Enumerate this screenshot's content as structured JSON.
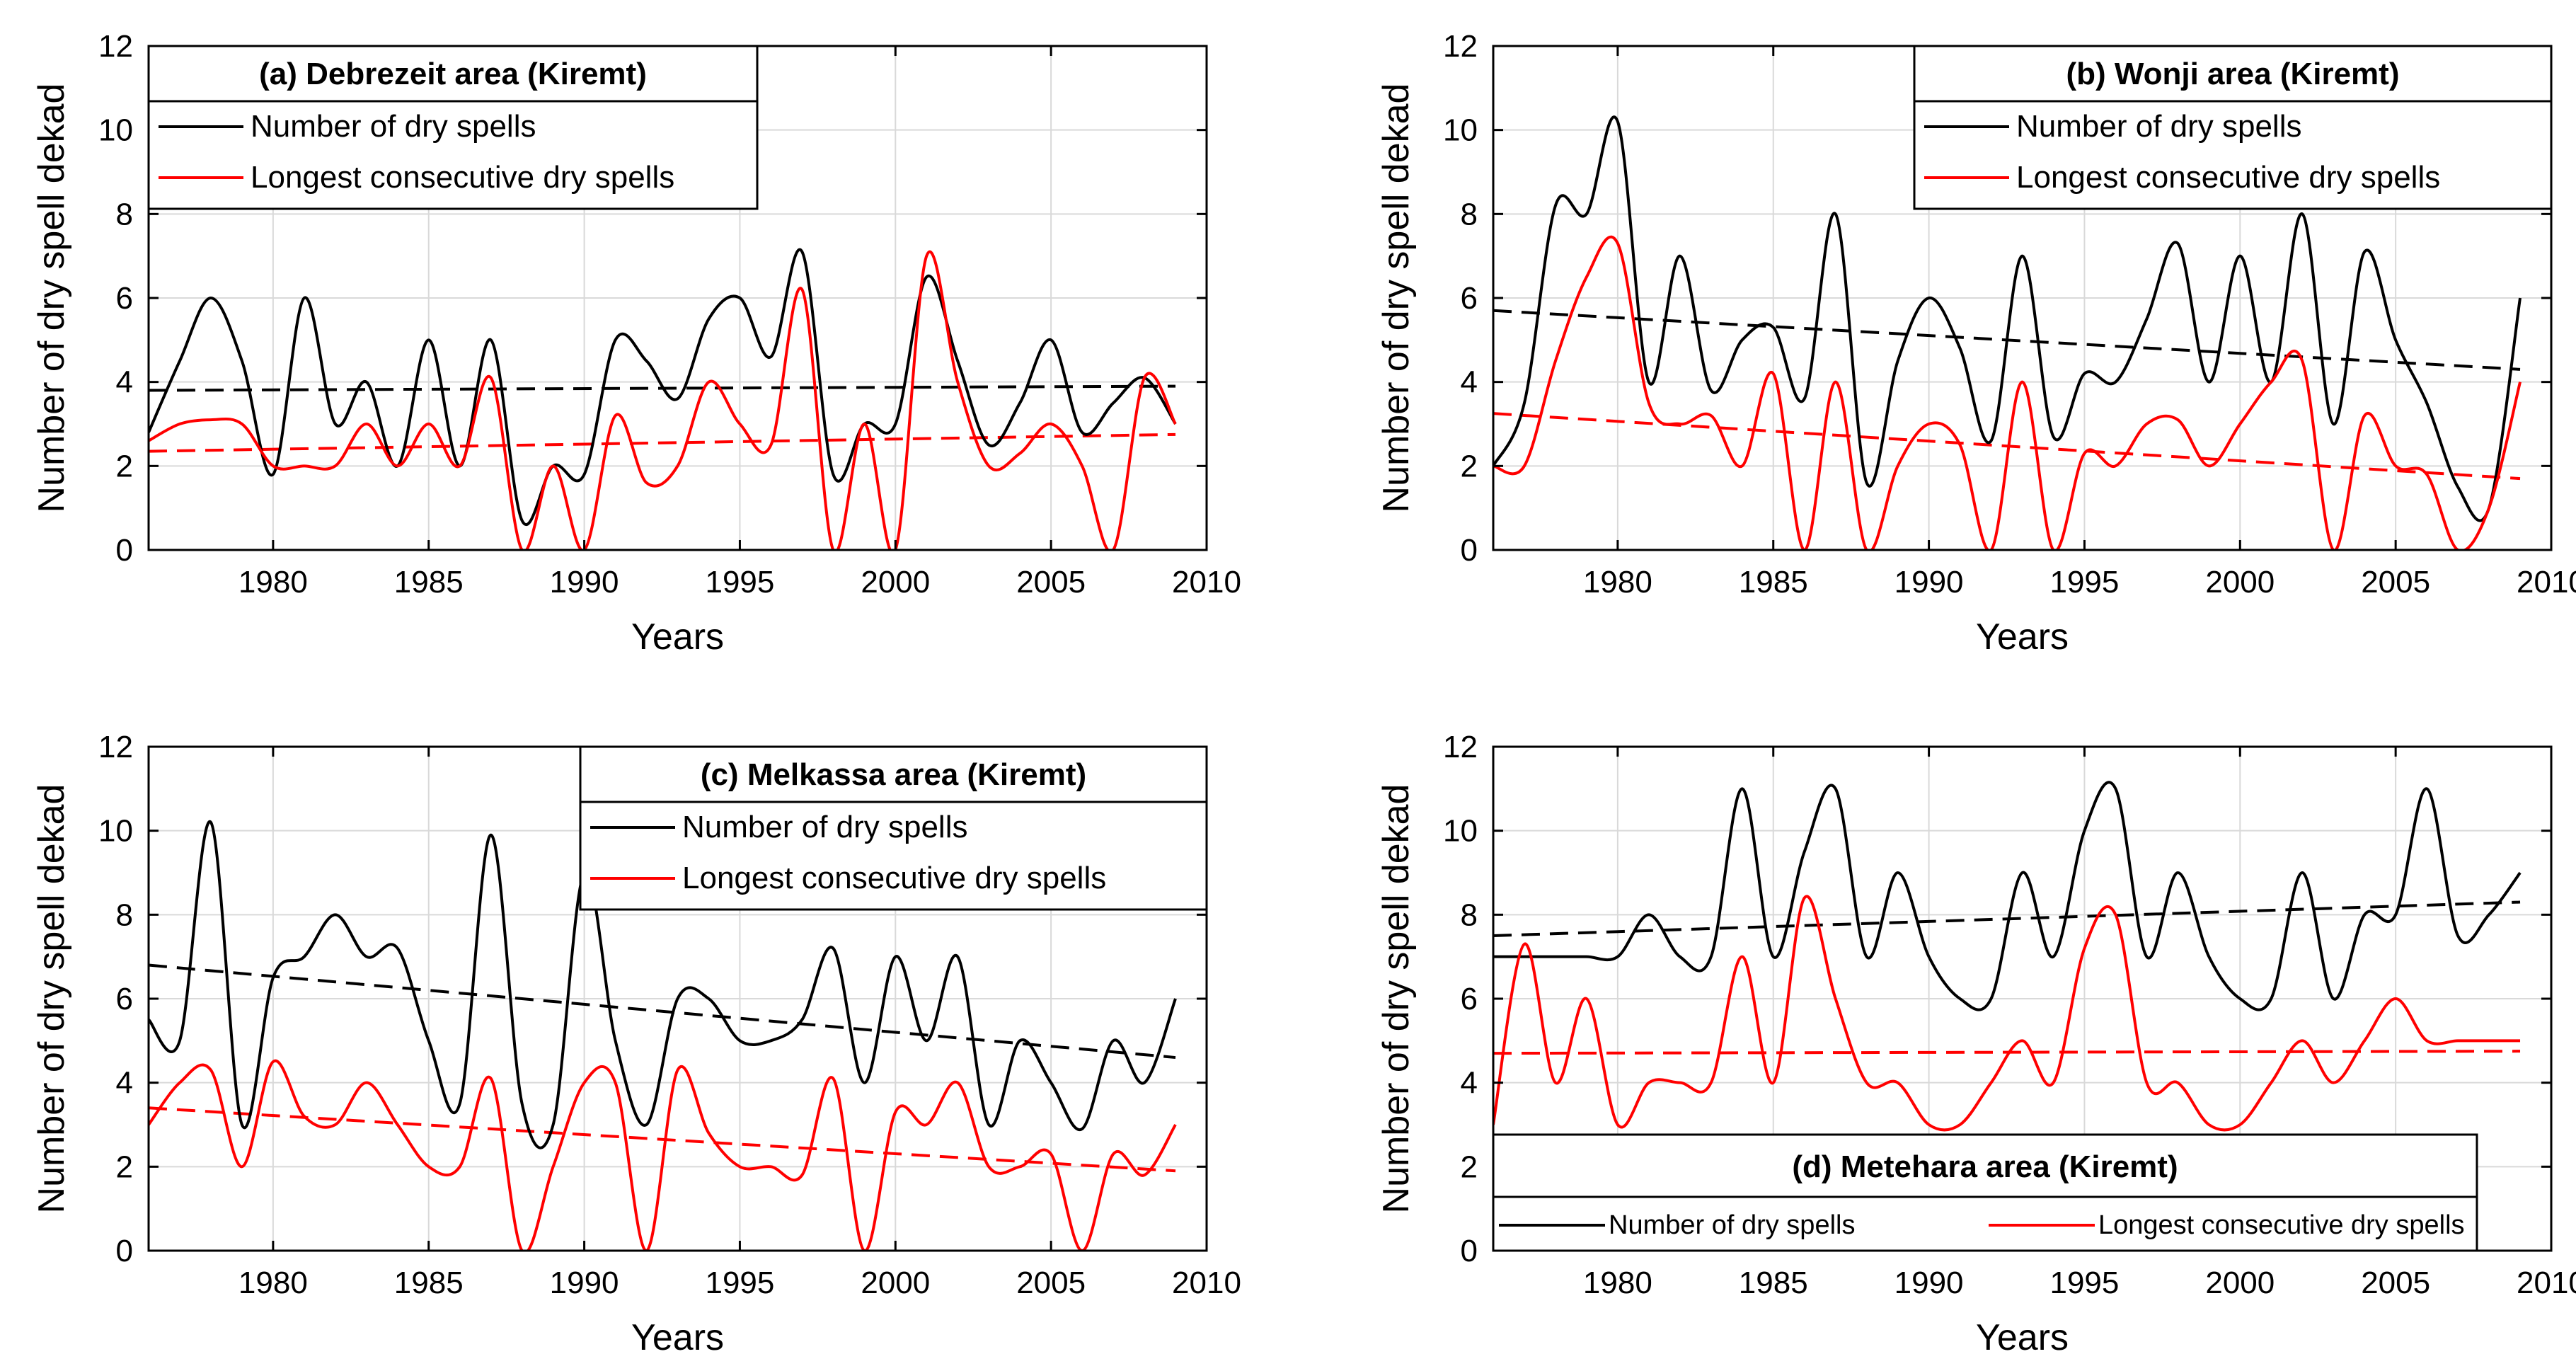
{
  "figure": {
    "shared_ylabel": "Number of dry spell dekad",
    "shared_xlabel": "Years"
  },
  "colors": {
    "series1": "#000000",
    "series2": "#ff0000",
    "grid": "#d9d9d9"
  },
  "chart_data": [
    {
      "type": "line",
      "panel": "a",
      "title": "(a) Debrezeit area (Kiremt)",
      "xlabel": "Years",
      "ylabel": "Number of dry spell dekad",
      "xlim": [
        1976,
        2010
      ],
      "ylim": [
        0,
        12
      ],
      "xticks": [
        1980,
        1985,
        1990,
        1995,
        2000,
        2005,
        2010
      ],
      "yticks": [
        0,
        2,
        4,
        6,
        8,
        10,
        12
      ],
      "grid": true,
      "legend_position": "top-left",
      "legend_layout": "vertical",
      "x": [
        1976,
        1977,
        1978,
        1979,
        1980,
        1981,
        1982,
        1983,
        1984,
        1985,
        1986,
        1987,
        1988,
        1989,
        1990,
        1991,
        1992,
        1993,
        1994,
        1995,
        1996,
        1997,
        1998,
        1999,
        2000,
        2001,
        2002,
        2003,
        2004,
        2005,
        2006,
        2007,
        2008,
        2009
      ],
      "series": [
        {
          "name": "Number of dry spells",
          "color": "#000000",
          "values": [
            2.8,
            4.5,
            6.0,
            4.5,
            1.8,
            6.0,
            3.0,
            4.0,
            2.0,
            5.0,
            2.0,
            5.0,
            0.7,
            2.0,
            1.8,
            5.0,
            4.5,
            3.6,
            5.5,
            6.0,
            4.6,
            7.1,
            1.8,
            3.0,
            3.0,
            6.5,
            4.5,
            2.5,
            3.5,
            5.0,
            2.8,
            3.5,
            4.1,
            3.0
          ]
        },
        {
          "name": "Longest consecutive dry spells",
          "color": "#ff0000",
          "values": [
            2.6,
            3.0,
            3.1,
            3.0,
            2.0,
            2.0,
            2.0,
            3.0,
            2.0,
            3.0,
            2.0,
            4.1,
            0.0,
            2.0,
            0.0,
            3.2,
            1.6,
            2.0,
            4.0,
            3.0,
            2.5,
            6.2,
            0.0,
            3.0,
            0.0,
            7.0,
            4.0,
            2.0,
            2.3,
            3.0,
            2.0,
            0.0,
            4.1,
            3.0
          ]
        }
      ],
      "trends": [
        {
          "name": "Number of dry spells trend",
          "color": "#000000",
          "x": [
            1976,
            2009
          ],
          "y": [
            3.8,
            3.9
          ]
        },
        {
          "name": "Longest consecutive dry spells trend",
          "color": "#ff0000",
          "x": [
            1976,
            2009
          ],
          "y": [
            2.35,
            2.75
          ]
        }
      ]
    },
    {
      "type": "line",
      "panel": "b",
      "title": "(b) Wonji area (Kiremt)",
      "xlabel": "Years",
      "ylabel": "Number of dry spell dekad",
      "xlim": [
        1976,
        2010
      ],
      "ylim": [
        0,
        12
      ],
      "xticks": [
        1980,
        1985,
        1990,
        1995,
        2000,
        2005,
        2010
      ],
      "yticks": [
        0,
        2,
        4,
        6,
        8,
        10,
        12
      ],
      "grid": true,
      "legend_position": "top-right",
      "legend_layout": "vertical",
      "x": [
        1976,
        1977,
        1978,
        1979,
        1980,
        1981,
        1982,
        1983,
        1984,
        1985,
        1986,
        1987,
        1988,
        1989,
        1990,
        1991,
        1992,
        1993,
        1994,
        1995,
        1996,
        1997,
        1998,
        1999,
        2000,
        2001,
        2002,
        2003,
        2004,
        2005,
        2006,
        2007,
        2008,
        2009
      ],
      "series": [
        {
          "name": "Number of dry spells",
          "color": "#000000",
          "values": [
            2.0,
            3.5,
            8.2,
            8.0,
            10.2,
            4.0,
            7.0,
            3.8,
            5.0,
            5.3,
            3.6,
            8.0,
            1.6,
            4.5,
            6.0,
            4.8,
            2.6,
            7.0,
            2.7,
            4.2,
            4.0,
            5.5,
            7.3,
            4.0,
            7.0,
            4.0,
            8.0,
            3.0,
            7.1,
            5.0,
            3.5,
            1.5,
            1.0,
            6.0
          ]
        },
        {
          "name": "Longest consecutive dry spells",
          "color": "#ff0000",
          "values": [
            2.0,
            2.0,
            4.5,
            6.5,
            7.3,
            3.5,
            3.0,
            3.2,
            2.0,
            4.2,
            0.0,
            4.0,
            0.0,
            2.0,
            3.0,
            2.5,
            0.0,
            4.0,
            0.0,
            2.3,
            2.0,
            3.0,
            3.1,
            2.0,
            3.0,
            4.0,
            4.5,
            0.0,
            3.2,
            2.0,
            1.8,
            0.0,
            1.0,
            4.0
          ]
        }
      ],
      "trends": [
        {
          "name": "Number of dry spells trend",
          "color": "#000000",
          "x": [
            1976,
            2009
          ],
          "y": [
            5.7,
            4.3
          ]
        },
        {
          "name": "Longest consecutive dry spells trend",
          "color": "#ff0000",
          "x": [
            1976,
            2009
          ],
          "y": [
            3.25,
            1.7
          ]
        }
      ]
    },
    {
      "type": "line",
      "panel": "c",
      "title": "(c) Melkassa area (Kiremt)",
      "xlabel": "Years",
      "ylabel": "Number of dry spell dekad",
      "xlim": [
        1976,
        2010
      ],
      "ylim": [
        0,
        12
      ],
      "xticks": [
        1980,
        1985,
        1990,
        1995,
        2000,
        2005,
        2010
      ],
      "yticks": [
        0,
        2,
        4,
        6,
        8,
        10,
        12
      ],
      "grid": true,
      "legend_position": "top-right",
      "legend_layout": "vertical",
      "x": [
        1976,
        1977,
        1978,
        1979,
        1980,
        1981,
        1982,
        1983,
        1984,
        1985,
        1986,
        1987,
        1988,
        1989,
        1990,
        1991,
        1992,
        1993,
        1994,
        1995,
        1996,
        1997,
        1998,
        1999,
        2000,
        2001,
        2002,
        2003,
        2004,
        2005,
        2006,
        2007,
        2008,
        2009
      ],
      "series": [
        {
          "name": "Number of dry spells",
          "color": "#000000",
          "values": [
            5.5,
            5.0,
            10.2,
            3.0,
            6.5,
            7.0,
            8.0,
            7.0,
            7.2,
            5.0,
            3.5,
            9.9,
            3.5,
            3.0,
            9.0,
            5.0,
            3.0,
            6.0,
            6.0,
            5.0,
            5.0,
            5.5,
            7.2,
            4.0,
            7.0,
            5.0,
            7.0,
            3.0,
            5.0,
            4.0,
            2.9,
            5.0,
            4.0,
            6.0
          ]
        },
        {
          "name": "Longest consecutive dry spells",
          "color": "#ff0000",
          "values": [
            3.0,
            4.0,
            4.3,
            2.0,
            4.5,
            3.2,
            3.0,
            4.0,
            3.0,
            2.0,
            2.0,
            4.1,
            0.0,
            2.0,
            4.0,
            4.0,
            0.0,
            4.3,
            2.8,
            2.0,
            2.0,
            1.8,
            4.1,
            0.0,
            3.3,
            3.0,
            4.0,
            2.0,
            2.0,
            2.3,
            0.0,
            2.3,
            1.8,
            3.0
          ]
        }
      ],
      "trends": [
        {
          "name": "Number of dry spells trend",
          "color": "#000000",
          "x": [
            1976,
            2009
          ],
          "y": [
            6.8,
            4.6
          ]
        },
        {
          "name": "Longest consecutive dry spells trend",
          "color": "#ff0000",
          "x": [
            1976,
            2009
          ],
          "y": [
            3.4,
            1.9
          ]
        }
      ]
    },
    {
      "type": "line",
      "panel": "d",
      "title": "(d) Metehara area (Kiremt)",
      "xlabel": "Years",
      "ylabel": "Number of dry spell dekad",
      "xlim": [
        1976,
        2010
      ],
      "ylim": [
        0,
        12
      ],
      "xticks": [
        1980,
        1985,
        1990,
        1995,
        2000,
        2005,
        2010
      ],
      "yticks": [
        0,
        2,
        4,
        6,
        8,
        10,
        12
      ],
      "grid": true,
      "legend_position": "bottom",
      "legend_layout": "horizontal",
      "x": [
        1976,
        1977,
        1978,
        1979,
        1980,
        1981,
        1982,
        1983,
        1984,
        1985,
        1986,
        1987,
        1988,
        1989,
        1990,
        1991,
        1992,
        1993,
        1994,
        1995,
        1996,
        1997,
        1998,
        1999,
        2000,
        2001,
        2002,
        2003,
        2004,
        2005,
        2006,
        2007,
        2008,
        2009
      ],
      "series": [
        {
          "name": "Number of dry spells",
          "color": "#000000",
          "values": [
            7.0,
            7.0,
            7.0,
            7.0,
            7.0,
            8.0,
            7.0,
            7.0,
            11.0,
            7.0,
            9.5,
            11.0,
            7.0,
            9.0,
            7.0,
            6.0,
            6.0,
            9.0,
            7.0,
            10.0,
            11.0,
            7.0,
            9.0,
            7.0,
            6.0,
            6.0,
            9.0,
            6.0,
            8.0,
            8.0,
            11.0,
            7.5,
            8.0,
            9.0
          ]
        },
        {
          "name": "Longest consecutive dry spells",
          "color": "#ff0000",
          "values": [
            3.0,
            7.3,
            4.0,
            6.0,
            3.0,
            4.0,
            4.0,
            4.0,
            7.0,
            4.0,
            8.4,
            6.0,
            4.0,
            4.0,
            3.0,
            3.0,
            4.0,
            5.0,
            4.0,
            7.2,
            8.0,
            4.0,
            4.0,
            3.0,
            3.0,
            4.0,
            5.0,
            4.0,
            5.0,
            6.0,
            5.0,
            5.0,
            5.0,
            5.0
          ]
        }
      ],
      "trends": [
        {
          "name": "Number of dry spells trend",
          "color": "#000000",
          "x": [
            1976,
            2009
          ],
          "y": [
            7.5,
            8.3
          ]
        },
        {
          "name": "Longest consecutive dry spells trend",
          "color": "#ff0000",
          "x": [
            1976,
            2009
          ],
          "y": [
            4.7,
            4.75
          ]
        }
      ]
    }
  ]
}
